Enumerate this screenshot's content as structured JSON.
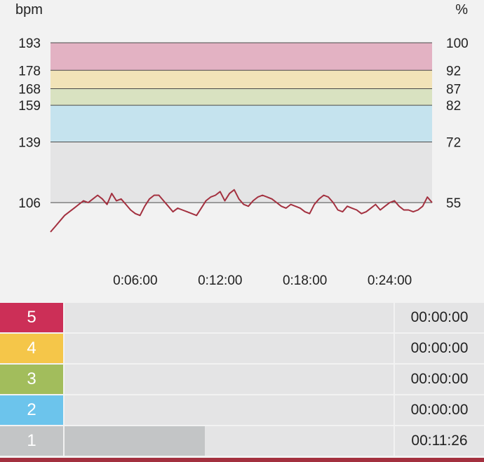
{
  "chart_data": {
    "type": "line",
    "left_axis_label": "bpm",
    "right_axis_label": "%",
    "x_ticks": [
      "0:06:00",
      "0:12:00",
      "0:18:00",
      "0:24:00"
    ],
    "x_tick_seconds": [
      360,
      720,
      1080,
      1440
    ],
    "x_range_seconds": [
      0,
      1620
    ],
    "y_range_bpm": [
      90,
      193
    ],
    "left_ticks": [
      "193",
      "178",
      "168",
      "159",
      "139",
      "106"
    ],
    "right_ticks": [
      "100",
      "92",
      "87",
      "82",
      "72",
      "55"
    ],
    "tick_bpm": [
      193,
      178,
      168,
      159,
      139,
      106
    ],
    "bands": [
      {
        "zone": "5",
        "from_bpm": 178,
        "to_bpm": 193,
        "color": "#e3b2c3"
      },
      {
        "zone": "4",
        "from_bpm": 168,
        "to_bpm": 178,
        "color": "#f2e3b8"
      },
      {
        "zone": "3",
        "from_bpm": 159,
        "to_bpm": 168,
        "color": "#d9e2c1"
      },
      {
        "zone": "2",
        "from_bpm": 139,
        "to_bpm": 159,
        "color": "#c5e3ee"
      },
      {
        "zone": "1",
        "from_bpm": 106,
        "to_bpm": 139,
        "color": "#e4e4e5"
      }
    ],
    "series": [
      {
        "color": "#a3303f",
        "x": [
          0,
          20,
          40,
          60,
          80,
          100,
          120,
          140,
          160,
          180,
          200,
          220,
          240,
          260,
          280,
          300,
          320,
          340,
          360,
          380,
          400,
          420,
          440,
          460,
          480,
          500,
          520,
          540,
          560,
          580,
          600,
          620,
          640,
          660,
          680,
          700,
          720,
          740,
          760,
          780,
          800,
          820,
          840,
          860,
          880,
          900,
          920,
          940,
          960,
          980,
          1000,
          1020,
          1040,
          1060,
          1080,
          1100,
          1120,
          1140,
          1160,
          1180,
          1200,
          1220,
          1240,
          1260,
          1280,
          1300,
          1320,
          1340,
          1360,
          1380,
          1400,
          1420,
          1440,
          1460,
          1480,
          1500,
          1520,
          1540,
          1560,
          1580,
          1600,
          1620
        ],
        "values": [
          90,
          93,
          96,
          99,
          101,
          103,
          105,
          107,
          106,
          108,
          110,
          108,
          105,
          111,
          107,
          108,
          105,
          102,
          100,
          99,
          104,
          108,
          110,
          110,
          107,
          104,
          101,
          103,
          102,
          101,
          100,
          99,
          103,
          107,
          109,
          110,
          112,
          107,
          111,
          113,
          108,
          105,
          104,
          107,
          109,
          110,
          109,
          108,
          106,
          104,
          103,
          105,
          104,
          103,
          101,
          100,
          105,
          108,
          110,
          109,
          106,
          102,
          101,
          104,
          103,
          102,
          100,
          101,
          103,
          105,
          102,
          104,
          106,
          107,
          104,
          102,
          102,
          101,
          102,
          104,
          109,
          106
        ]
      }
    ]
  },
  "zones": [
    {
      "label": "5",
      "time": "00:00:00",
      "fraction": 0,
      "color": "#cc2f57"
    },
    {
      "label": "4",
      "time": "00:00:00",
      "fraction": 0,
      "color": "#f5c649"
    },
    {
      "label": "3",
      "time": "00:00:00",
      "fraction": 0,
      "color": "#a2bd5c"
    },
    {
      "label": "2",
      "time": "00:00:00",
      "fraction": 0,
      "color": "#6cc4ec"
    },
    {
      "label": "1",
      "time": "00:11:26",
      "fraction": 0.426,
      "color": "#c3c5c6"
    }
  ]
}
